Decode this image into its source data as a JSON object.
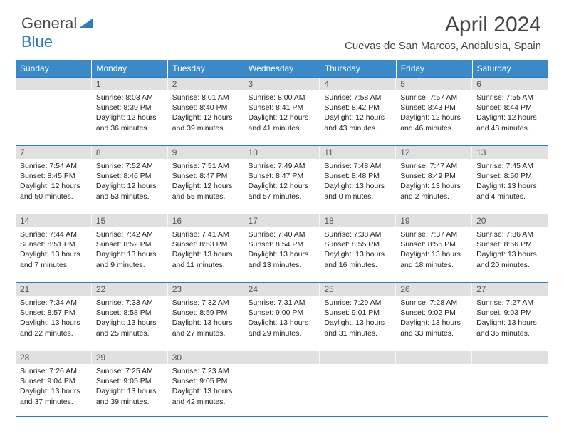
{
  "brand": {
    "part1": "General",
    "part2": "Blue"
  },
  "title": "April 2024",
  "location": "Cuevas de San Marcos, Andalusia, Spain",
  "colors": {
    "header_bg": "#3a8ac9",
    "daynum_bg": "#e0e0e0",
    "border": "#2e7cc0"
  },
  "weekdays": [
    "Sunday",
    "Monday",
    "Tuesday",
    "Wednesday",
    "Thursday",
    "Friday",
    "Saturday"
  ],
  "weeks": [
    [
      {
        "day": "",
        "sunrise": "",
        "sunset": "",
        "daylight": ""
      },
      {
        "day": "1",
        "sunrise": "Sunrise: 8:03 AM",
        "sunset": "Sunset: 8:39 PM",
        "daylight": "Daylight: 12 hours and 36 minutes."
      },
      {
        "day": "2",
        "sunrise": "Sunrise: 8:01 AM",
        "sunset": "Sunset: 8:40 PM",
        "daylight": "Daylight: 12 hours and 39 minutes."
      },
      {
        "day": "3",
        "sunrise": "Sunrise: 8:00 AM",
        "sunset": "Sunset: 8:41 PM",
        "daylight": "Daylight: 12 hours and 41 minutes."
      },
      {
        "day": "4",
        "sunrise": "Sunrise: 7:58 AM",
        "sunset": "Sunset: 8:42 PM",
        "daylight": "Daylight: 12 hours and 43 minutes."
      },
      {
        "day": "5",
        "sunrise": "Sunrise: 7:57 AM",
        "sunset": "Sunset: 8:43 PM",
        "daylight": "Daylight: 12 hours and 46 minutes."
      },
      {
        "day": "6",
        "sunrise": "Sunrise: 7:55 AM",
        "sunset": "Sunset: 8:44 PM",
        "daylight": "Daylight: 12 hours and 48 minutes."
      }
    ],
    [
      {
        "day": "7",
        "sunrise": "Sunrise: 7:54 AM",
        "sunset": "Sunset: 8:45 PM",
        "daylight": "Daylight: 12 hours and 50 minutes."
      },
      {
        "day": "8",
        "sunrise": "Sunrise: 7:52 AM",
        "sunset": "Sunset: 8:46 PM",
        "daylight": "Daylight: 12 hours and 53 minutes."
      },
      {
        "day": "9",
        "sunrise": "Sunrise: 7:51 AM",
        "sunset": "Sunset: 8:47 PM",
        "daylight": "Daylight: 12 hours and 55 minutes."
      },
      {
        "day": "10",
        "sunrise": "Sunrise: 7:49 AM",
        "sunset": "Sunset: 8:47 PM",
        "daylight": "Daylight: 12 hours and 57 minutes."
      },
      {
        "day": "11",
        "sunrise": "Sunrise: 7:48 AM",
        "sunset": "Sunset: 8:48 PM",
        "daylight": "Daylight: 13 hours and 0 minutes."
      },
      {
        "day": "12",
        "sunrise": "Sunrise: 7:47 AM",
        "sunset": "Sunset: 8:49 PM",
        "daylight": "Daylight: 13 hours and 2 minutes."
      },
      {
        "day": "13",
        "sunrise": "Sunrise: 7:45 AM",
        "sunset": "Sunset: 8:50 PM",
        "daylight": "Daylight: 13 hours and 4 minutes."
      }
    ],
    [
      {
        "day": "14",
        "sunrise": "Sunrise: 7:44 AM",
        "sunset": "Sunset: 8:51 PM",
        "daylight": "Daylight: 13 hours and 7 minutes."
      },
      {
        "day": "15",
        "sunrise": "Sunrise: 7:42 AM",
        "sunset": "Sunset: 8:52 PM",
        "daylight": "Daylight: 13 hours and 9 minutes."
      },
      {
        "day": "16",
        "sunrise": "Sunrise: 7:41 AM",
        "sunset": "Sunset: 8:53 PM",
        "daylight": "Daylight: 13 hours and 11 minutes."
      },
      {
        "day": "17",
        "sunrise": "Sunrise: 7:40 AM",
        "sunset": "Sunset: 8:54 PM",
        "daylight": "Daylight: 13 hours and 13 minutes."
      },
      {
        "day": "18",
        "sunrise": "Sunrise: 7:38 AM",
        "sunset": "Sunset: 8:55 PM",
        "daylight": "Daylight: 13 hours and 16 minutes."
      },
      {
        "day": "19",
        "sunrise": "Sunrise: 7:37 AM",
        "sunset": "Sunset: 8:55 PM",
        "daylight": "Daylight: 13 hours and 18 minutes."
      },
      {
        "day": "20",
        "sunrise": "Sunrise: 7:36 AM",
        "sunset": "Sunset: 8:56 PM",
        "daylight": "Daylight: 13 hours and 20 minutes."
      }
    ],
    [
      {
        "day": "21",
        "sunrise": "Sunrise: 7:34 AM",
        "sunset": "Sunset: 8:57 PM",
        "daylight": "Daylight: 13 hours and 22 minutes."
      },
      {
        "day": "22",
        "sunrise": "Sunrise: 7:33 AM",
        "sunset": "Sunset: 8:58 PM",
        "daylight": "Daylight: 13 hours and 25 minutes."
      },
      {
        "day": "23",
        "sunrise": "Sunrise: 7:32 AM",
        "sunset": "Sunset: 8:59 PM",
        "daylight": "Daylight: 13 hours and 27 minutes."
      },
      {
        "day": "24",
        "sunrise": "Sunrise: 7:31 AM",
        "sunset": "Sunset: 9:00 PM",
        "daylight": "Daylight: 13 hours and 29 minutes."
      },
      {
        "day": "25",
        "sunrise": "Sunrise: 7:29 AM",
        "sunset": "Sunset: 9:01 PM",
        "daylight": "Daylight: 13 hours and 31 minutes."
      },
      {
        "day": "26",
        "sunrise": "Sunrise: 7:28 AM",
        "sunset": "Sunset: 9:02 PM",
        "daylight": "Daylight: 13 hours and 33 minutes."
      },
      {
        "day": "27",
        "sunrise": "Sunrise: 7:27 AM",
        "sunset": "Sunset: 9:03 PM",
        "daylight": "Daylight: 13 hours and 35 minutes."
      }
    ],
    [
      {
        "day": "28",
        "sunrise": "Sunrise: 7:26 AM",
        "sunset": "Sunset: 9:04 PM",
        "daylight": "Daylight: 13 hours and 37 minutes."
      },
      {
        "day": "29",
        "sunrise": "Sunrise: 7:25 AM",
        "sunset": "Sunset: 9:05 PM",
        "daylight": "Daylight: 13 hours and 39 minutes."
      },
      {
        "day": "30",
        "sunrise": "Sunrise: 7:23 AM",
        "sunset": "Sunset: 9:05 PM",
        "daylight": "Daylight: 13 hours and 42 minutes."
      },
      {
        "day": "",
        "sunrise": "",
        "sunset": "",
        "daylight": ""
      },
      {
        "day": "",
        "sunrise": "",
        "sunset": "",
        "daylight": ""
      },
      {
        "day": "",
        "sunrise": "",
        "sunset": "",
        "daylight": ""
      },
      {
        "day": "",
        "sunrise": "",
        "sunset": "",
        "daylight": ""
      }
    ]
  ]
}
